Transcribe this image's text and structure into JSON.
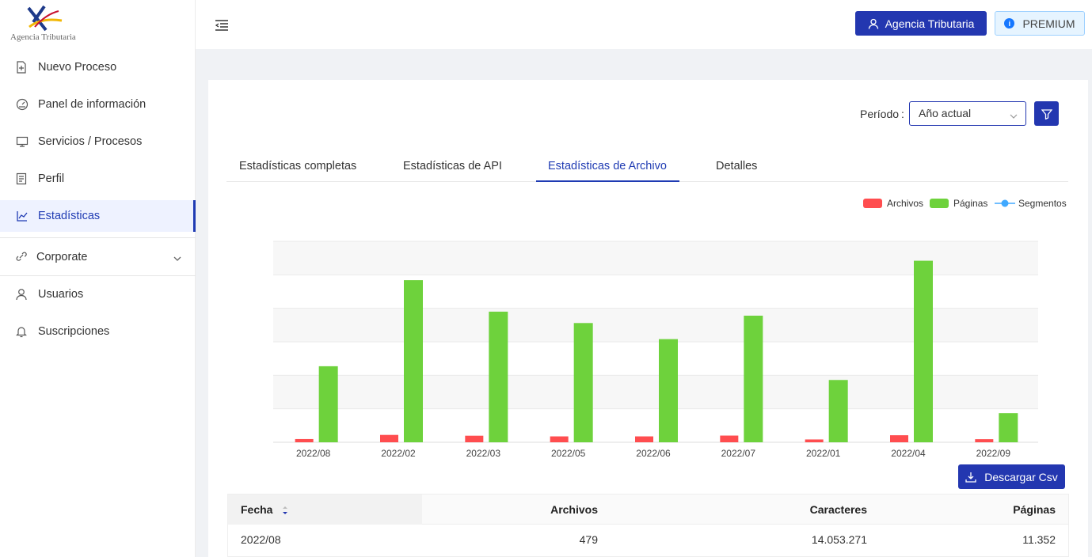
{
  "brand": {
    "logo_text": "Agencia Tributaria"
  },
  "sidebar": {
    "items": [
      {
        "label": "Nuevo Proceso",
        "icon": "file-plus-icon"
      },
      {
        "label": "Panel de información",
        "icon": "dashboard-icon"
      },
      {
        "label": "Servicios / Procesos",
        "icon": "monitor-icon"
      },
      {
        "label": "Perfil",
        "icon": "profile-icon"
      },
      {
        "label": "Estadísticas",
        "icon": "line-chart-icon",
        "active": true
      },
      {
        "label": "Corporate",
        "icon": "link-icon"
      },
      {
        "label": "Usuarios",
        "icon": "user-icon"
      },
      {
        "label": "Suscripciones",
        "icon": "bell-icon"
      }
    ]
  },
  "header": {
    "account_label": "Agencia Tributaria",
    "plan_label": "PREMIUM",
    "plan_icon_glyph": "i"
  },
  "filters": {
    "period_label": "Período",
    "period_sep": ":",
    "period_value": "Año actual"
  },
  "tabs": [
    {
      "label": "Estadísticas completas"
    },
    {
      "label": "Estadísticas de API"
    },
    {
      "label": "Estadísticas de Archivo",
      "active": true
    },
    {
      "label": "Detalles"
    }
  ],
  "legend": [
    {
      "label": "Archivos",
      "color": "#ff4d4f"
    },
    {
      "label": "Páginas",
      "color": "#6ed23c"
    },
    {
      "label": "Segmentos",
      "color": "#40a9ff"
    }
  ],
  "chart_data": {
    "type": "bar",
    "categories": [
      "2022/08",
      "2022/02",
      "2022/03",
      "2022/05",
      "2022/06",
      "2022/07",
      "2022/01",
      "2022/04",
      "2022/09"
    ],
    "series": [
      {
        "name": "Archivos",
        "values": [
          479,
          1100,
          980,
          880,
          880,
          1000,
          420,
          1050,
          460
        ],
        "color": "#ff4d4f"
      },
      {
        "name": "Páginas",
        "values": [
          11352,
          24200,
          19500,
          17800,
          15400,
          18900,
          9300,
          27100,
          4350
        ],
        "color": "#6ed23c"
      },
      {
        "name": "Segmentos",
        "values": [
          0,
          0,
          0,
          0,
          0,
          0,
          0,
          0,
          0
        ],
        "color": "#40a9ff"
      }
    ],
    "ylim": [
      0,
      30000
    ],
    "grid": true,
    "legend_position": "top-right"
  },
  "actions": {
    "download_label": "Descargar Csv"
  },
  "table": {
    "columns": [
      "Fecha",
      "Archivos",
      "Caracteres",
      "Páginas"
    ],
    "rows": [
      [
        "2022/08",
        "479",
        "14.053.271",
        "11.352"
      ]
    ]
  }
}
